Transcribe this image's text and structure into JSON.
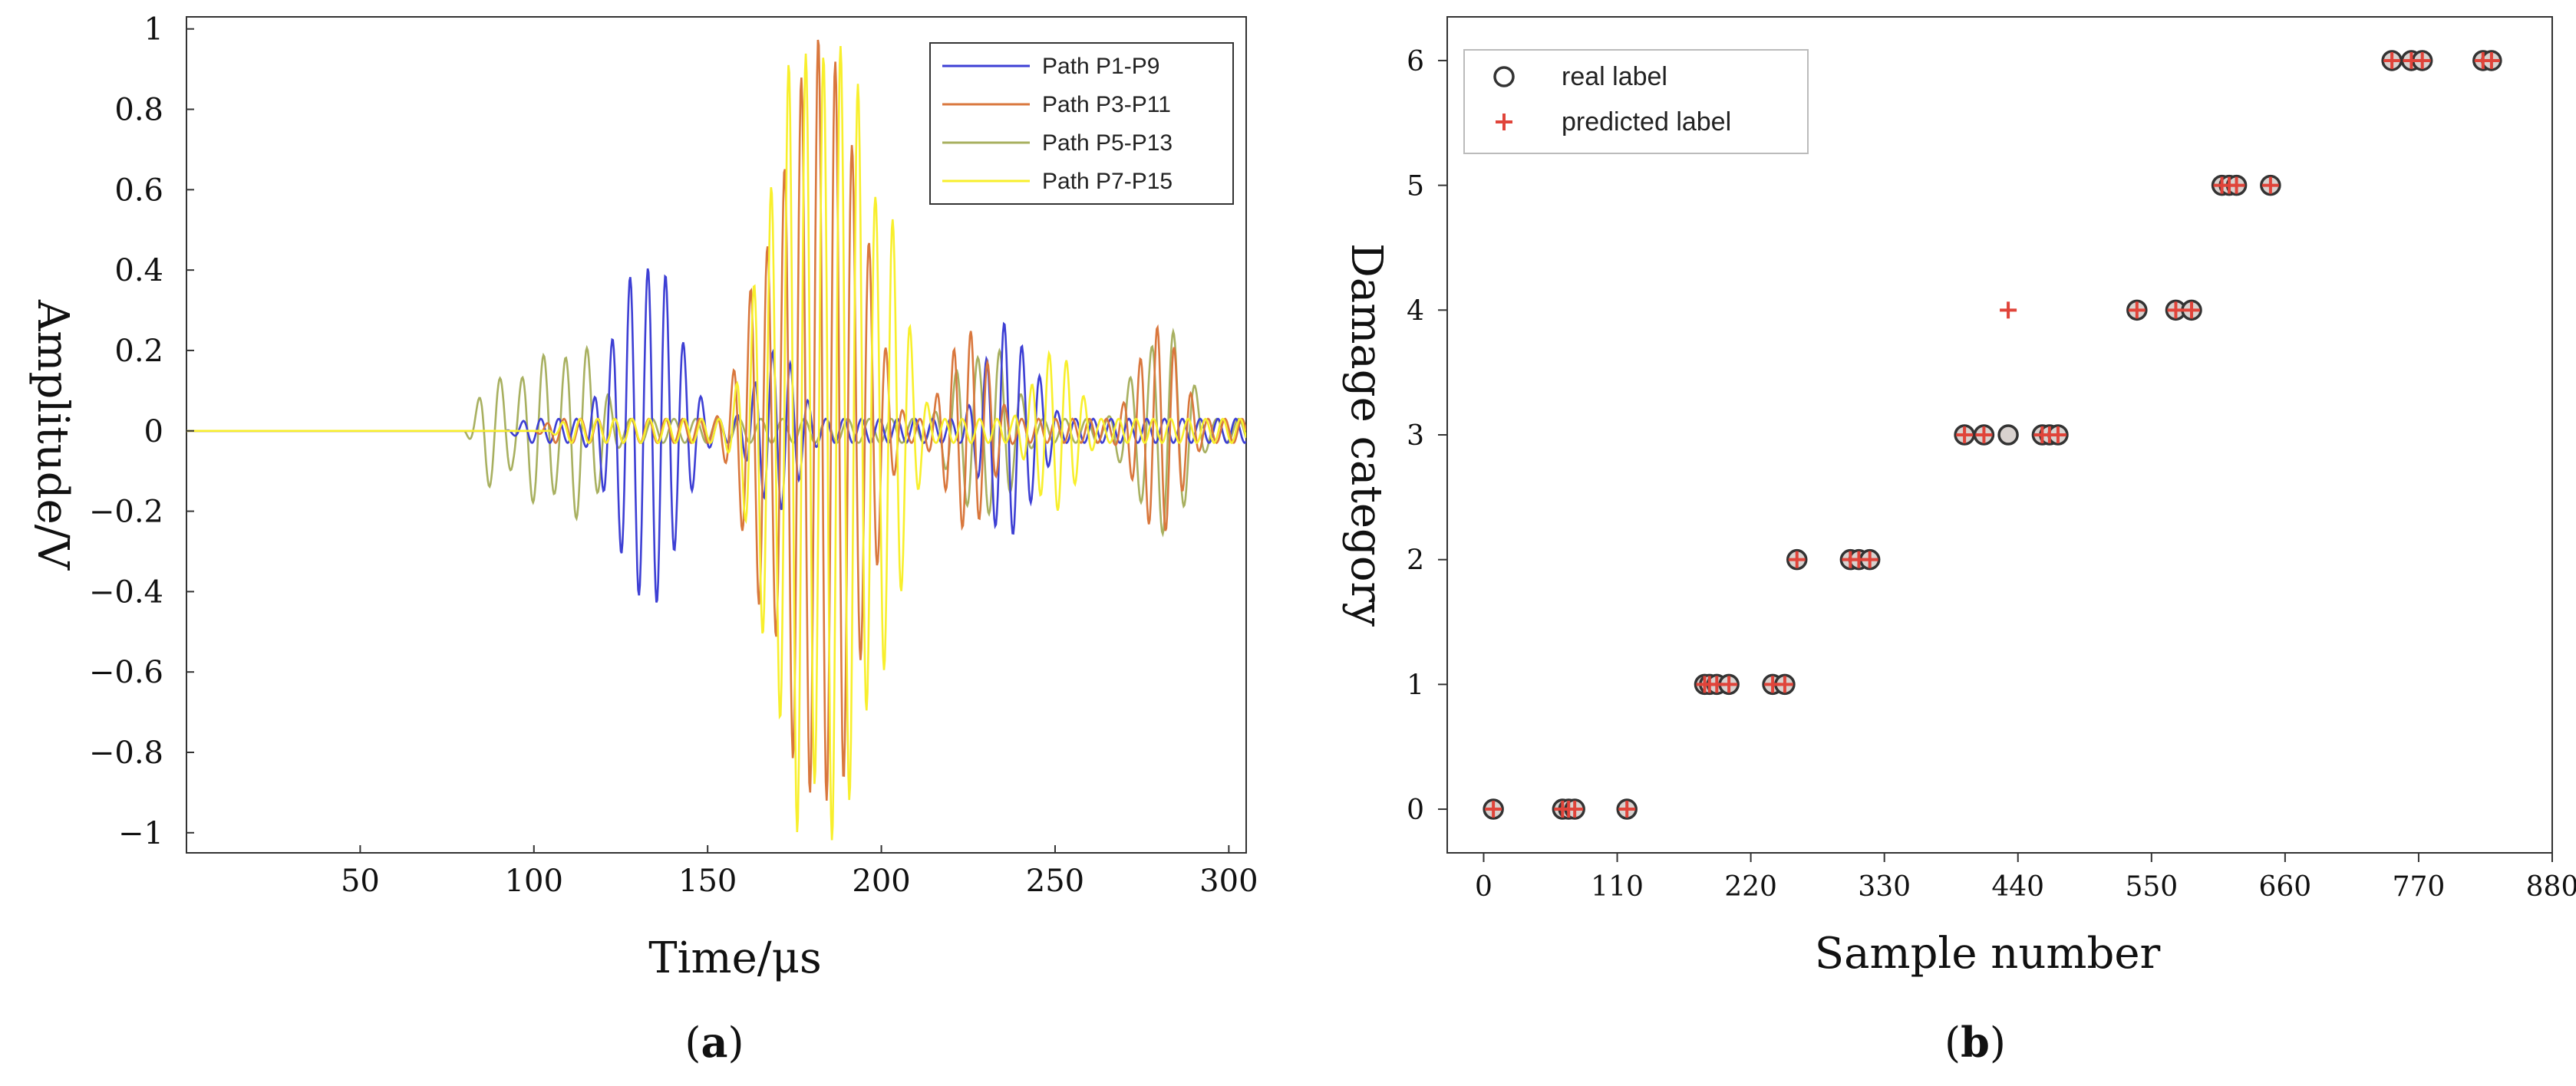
{
  "colors": {
    "series_blue": "#3d3fd4",
    "series_orange": "#d9773d",
    "series_olive": "#a8b060",
    "series_yellow": "#f8ef2c",
    "real_label": "#333333",
    "predicted_label": "#e0443a"
  },
  "chart_data": [
    {
      "type": "line",
      "panel_label": "a",
      "title": "",
      "xlabel": "Time/μs",
      "ylabel": "Amplitude/V",
      "xlim": [
        0,
        305
      ],
      "ylim": [
        -1.05,
        1.03
      ],
      "xticks": [
        "50",
        "100",
        "150",
        "200",
        "250",
        "300"
      ],
      "yticks": [
        "1",
        "0.8",
        "0.6",
        "0.4",
        "0.2",
        "0",
        "-0.2",
        "-0.4",
        "-0.6",
        "-0.8",
        "-1"
      ],
      "grid": false,
      "legend_position": "top-right",
      "series": [
        {
          "name": "Path P1-P9",
          "color": "#3d3fd4",
          "onset_us": 92,
          "peaks": [
            {
              "t": 128,
              "v": 0.33
            },
            {
              "t": 130,
              "v": -0.41
            },
            {
              "t": 135,
              "v": 0.43
            },
            {
              "t": 138,
              "v": -0.3
            },
            {
              "t": 170,
              "v": 0.2
            },
            {
              "t": 236,
              "v": 0.27
            },
            {
              "t": 240,
              "v": -0.2
            }
          ]
        },
        {
          "name": "Path P3-P11",
          "color": "#d9773d",
          "onset_us": 100,
          "peaks": [
            {
              "t": 167,
              "v": 0.46
            },
            {
              "t": 172,
              "v": -0.55
            },
            {
              "t": 177,
              "v": 0.88
            },
            {
              "t": 182,
              "v": -0.98
            },
            {
              "t": 187,
              "v": 0.92
            },
            {
              "t": 192,
              "v": -0.6
            },
            {
              "t": 225,
              "v": 0.25
            },
            {
              "t": 280,
              "v": -0.26
            }
          ]
        },
        {
          "name": "Path P5-P13",
          "color": "#a8b060",
          "onset_us": 80,
          "peaks": [
            {
              "t": 85,
              "v": 0.11
            },
            {
              "t": 88,
              "v": -0.14
            },
            {
              "t": 102,
              "v": 0.19
            },
            {
              "t": 113,
              "v": -0.22
            },
            {
              "t": 226,
              "v": 0.19
            },
            {
              "t": 232,
              "v": -0.21
            },
            {
              "t": 277,
              "v": 0.19
            },
            {
              "t": 282,
              "v": -0.26
            }
          ]
        },
        {
          "name": "Path P7-P15",
          "color": "#f8ef2c",
          "onset_us": 104,
          "peaks": [
            {
              "t": 170,
              "v": -0.63
            },
            {
              "t": 176,
              "v": 1.0
            },
            {
              "t": 181,
              "v": -0.88
            },
            {
              "t": 186,
              "v": 1.02
            },
            {
              "t": 191,
              "v": -0.92
            },
            {
              "t": 196,
              "v": 0.62
            },
            {
              "t": 200,
              "v": -0.6
            },
            {
              "t": 250,
              "v": 0.2
            }
          ]
        }
      ]
    },
    {
      "type": "scatter",
      "panel_label": "b",
      "title": "",
      "xlabel": "Sample number",
      "ylabel": "Damage category",
      "xlim": [
        -30,
        880
      ],
      "ylim": [
        -0.35,
        6.35
      ],
      "xticks": [
        "0",
        "110",
        "220",
        "330",
        "440",
        "550",
        "660",
        "770",
        "880"
      ],
      "yticks": [
        "0",
        "1",
        "2",
        "3",
        "4",
        "5",
        "6"
      ],
      "grid": false,
      "legend_position": "top-left",
      "series": [
        {
          "name": "real label",
          "marker": "circle",
          "color": "#333333",
          "points": [
            [
              8,
              0
            ],
            [
              65,
              0
            ],
            [
              70,
              0
            ],
            [
              75,
              0
            ],
            [
              118,
              0
            ],
            [
              182,
              1
            ],
            [
              186,
              1
            ],
            [
              192,
              1
            ],
            [
              202,
              1
            ],
            [
              238,
              1
            ],
            [
              248,
              1
            ],
            [
              258,
              2
            ],
            [
              302,
              2
            ],
            [
              309,
              2
            ],
            [
              318,
              2
            ],
            [
              396,
              3
            ],
            [
              412,
              3
            ],
            [
              432,
              3
            ],
            [
              460,
              3
            ],
            [
              466,
              3
            ],
            [
              473,
              3
            ],
            [
              538,
              4
            ],
            [
              570,
              4
            ],
            [
              583,
              4
            ],
            [
              608,
              5
            ],
            [
              614,
              5
            ],
            [
              620,
              5
            ],
            [
              648,
              5
            ],
            [
              748,
              6
            ],
            [
              764,
              6
            ],
            [
              773,
              6
            ],
            [
              823,
              6
            ],
            [
              830,
              6
            ]
          ]
        },
        {
          "name": "predicted label",
          "marker": "plus",
          "color": "#e0443a",
          "points": [
            [
              8,
              0
            ],
            [
              65,
              0
            ],
            [
              70,
              0
            ],
            [
              75,
              0
            ],
            [
              118,
              0
            ],
            [
              182,
              1
            ],
            [
              186,
              1
            ],
            [
              192,
              1
            ],
            [
              202,
              1
            ],
            [
              238,
              1
            ],
            [
              248,
              1
            ],
            [
              258,
              2
            ],
            [
              302,
              2
            ],
            [
              309,
              2
            ],
            [
              318,
              2
            ],
            [
              396,
              3
            ],
            [
              412,
              3
            ],
            [
              432,
              4
            ],
            [
              460,
              3
            ],
            [
              466,
              3
            ],
            [
              473,
              3
            ],
            [
              538,
              4
            ],
            [
              570,
              4
            ],
            [
              583,
              4
            ],
            [
              608,
              5
            ],
            [
              614,
              5
            ],
            [
              620,
              5
            ],
            [
              648,
              5
            ],
            [
              748,
              6
            ],
            [
              764,
              6
            ],
            [
              773,
              6
            ],
            [
              823,
              6
            ],
            [
              830,
              6
            ]
          ]
        }
      ]
    }
  ]
}
